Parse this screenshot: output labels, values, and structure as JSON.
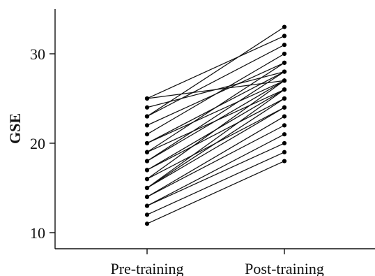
{
  "chart_data": {
    "type": "line",
    "title": "",
    "xlabel": "",
    "ylabel": "GSE",
    "categories": [
      "Pre-training",
      "Post-training"
    ],
    "ylim": [
      8.2,
      35
    ],
    "yticks": [
      10,
      20,
      30
    ],
    "grid": false,
    "legend": "none",
    "colors": {
      "line": "#111111",
      "marker": "#000000",
      "axis": "#111111",
      "background": "#ffffff"
    },
    "series": [
      {
        "values": [
          11,
          18
        ]
      },
      {
        "values": [
          12,
          19
        ]
      },
      {
        "values": [
          13,
          20
        ]
      },
      {
        "values": [
          13,
          21
        ]
      },
      {
        "values": [
          14,
          22
        ]
      },
      {
        "values": [
          14,
          23
        ]
      },
      {
        "values": [
          15,
          24
        ]
      },
      {
        "values": [
          15,
          25
        ]
      },
      {
        "values": [
          15,
          26
        ]
      },
      {
        "values": [
          16,
          24
        ]
      },
      {
        "values": [
          16,
          27
        ]
      },
      {
        "values": [
          17,
          25
        ]
      },
      {
        "values": [
          17,
          26
        ]
      },
      {
        "values": [
          18,
          27
        ]
      },
      {
        "values": [
          18,
          28
        ]
      },
      {
        "values": [
          19,
          26
        ]
      },
      {
        "values": [
          19,
          29
        ]
      },
      {
        "values": [
          20,
          27
        ]
      },
      {
        "values": [
          20,
          28
        ]
      },
      {
        "values": [
          21,
          30
        ]
      },
      {
        "values": [
          22,
          29
        ]
      },
      {
        "values": [
          23,
          31
        ]
      },
      {
        "values": [
          23,
          33
        ]
      },
      {
        "values": [
          24,
          28
        ]
      },
      {
        "values": [
          25,
          32
        ]
      },
      {
        "values": [
          25,
          27
        ]
      }
    ]
  }
}
